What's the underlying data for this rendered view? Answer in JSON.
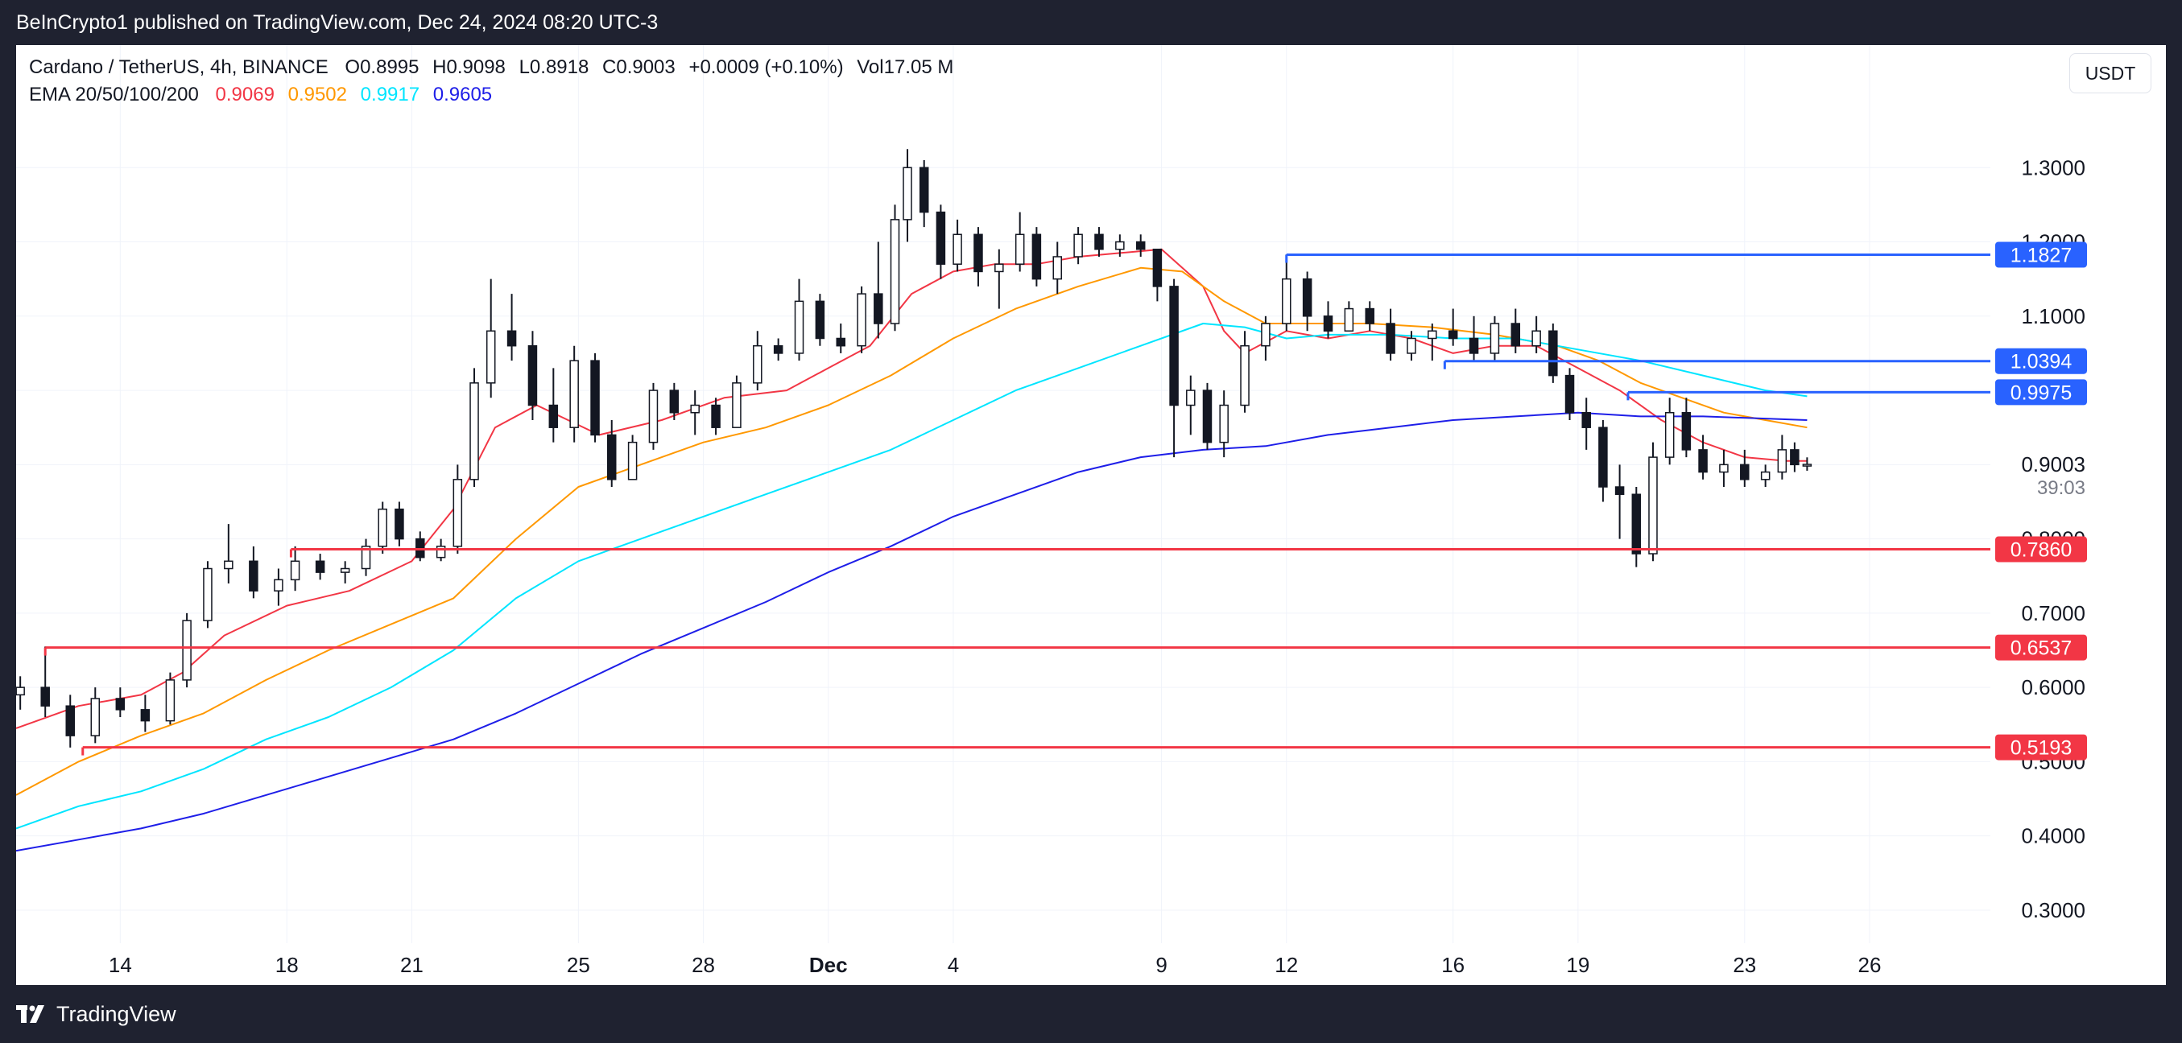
{
  "header": {
    "published": "BeInCrypto1 published on TradingView.com, Dec 24, 2024 08:20 UTC-3"
  },
  "legend": {
    "symbol": "Cardano / TetherUS, 4h, BINANCE",
    "open": "O0.8995",
    "high": "H0.9098",
    "low": "L0.8918",
    "close": "C0.9003",
    "change": "+0.0009 (+0.10%)",
    "volume": "Vol17.05 M",
    "ema_label": "EMA 20/50/100/200",
    "ema_values": [
      {
        "value": "0.9069",
        "color": "#f23645"
      },
      {
        "value": "0.9502",
        "color": "#ff9800"
      },
      {
        "value": "0.9917",
        "color": "#00e5ff"
      },
      {
        "value": "0.9605",
        "color": "#1e1ee8"
      }
    ]
  },
  "currency_button": "USDT",
  "footer": {
    "brand": "TradingView"
  },
  "chart_data": {
    "type": "candlestick",
    "title": "Cardano / TetherUS, 4h, BINANCE",
    "y_ticks": [
      "0.3000",
      "0.4000",
      "0.5000",
      "0.6000",
      "0.7000",
      "0.8000",
      "0.9000",
      "1.0000",
      "1.1000",
      "1.2000",
      "1.3000"
    ],
    "ylim": [
      0.262,
      1.4
    ],
    "x_ticks": [
      "14",
      "18",
      "21",
      "25",
      "28",
      "Dec",
      "4",
      "9",
      "12",
      "16",
      "19",
      "23",
      "26"
    ],
    "x_tick_days": [
      14,
      18,
      21,
      25,
      28,
      31,
      34,
      39,
      42,
      46,
      49,
      53,
      56
    ],
    "x_range_days": [
      11.5,
      58.9
    ],
    "day_labels": "day index counted from Nov 1 (Dec 1 = 31)",
    "last_price": "0.9003",
    "countdown": "39:03",
    "price_levels": [
      {
        "label": "1.1827",
        "value": 1.1827,
        "color": "#2962ff",
        "start_day": 42
      },
      {
        "label": "1.0394",
        "value": 1.0394,
        "color": "#2962ff",
        "start_day": 45.8
      },
      {
        "label": "0.9975",
        "value": 0.9975,
        "color": "#2962ff",
        "start_day": 50.2
      },
      {
        "label": "0.7860",
        "value": 0.786,
        "color": "#f23645",
        "start_day": 18.1
      },
      {
        "label": "0.6537",
        "value": 0.6537,
        "color": "#f23645",
        "start_day": 12.2
      },
      {
        "label": "0.5193",
        "value": 0.5193,
        "color": "#f23645",
        "start_day": 13.1
      }
    ],
    "ema_series": [
      {
        "period": 20,
        "color": "#f23645",
        "days": [
          11.5,
          13,
          14.5,
          15.5,
          16.5,
          18,
          19.5,
          21,
          22,
          23,
          24,
          25.5,
          27,
          28.5,
          30,
          31,
          32,
          33,
          34,
          35,
          36,
          37,
          38,
          39,
          40,
          40.5,
          41,
          42,
          43,
          44,
          45,
          46,
          47,
          48,
          49,
          50,
          51,
          52,
          53,
          54,
          54.5
        ],
        "values": [
          0.545,
          0.575,
          0.59,
          0.62,
          0.67,
          0.71,
          0.73,
          0.77,
          0.84,
          0.95,
          0.98,
          0.94,
          0.96,
          0.99,
          1.0,
          1.03,
          1.06,
          1.13,
          1.16,
          1.17,
          1.17,
          1.18,
          1.185,
          1.19,
          1.14,
          1.08,
          1.05,
          1.08,
          1.07,
          1.08,
          1.07,
          1.05,
          1.06,
          1.06,
          1.03,
          1.0,
          0.96,
          0.93,
          0.91,
          0.905,
          0.905
        ]
      },
      {
        "period": 50,
        "color": "#ff9800",
        "days": [
          11.5,
          13,
          14.5,
          16,
          17.5,
          19,
          20.5,
          22,
          23.5,
          25,
          26.5,
          28,
          29.5,
          31,
          32.5,
          34,
          35.5,
          37,
          38.5,
          39.5,
          40.5,
          41.5,
          42.5,
          44,
          45.5,
          47,
          48.5,
          49.5,
          50.5,
          51.5,
          52.5,
          53.5,
          54.5
        ],
        "values": [
          0.455,
          0.5,
          0.535,
          0.565,
          0.61,
          0.65,
          0.685,
          0.72,
          0.8,
          0.87,
          0.9,
          0.93,
          0.95,
          0.98,
          1.02,
          1.07,
          1.11,
          1.14,
          1.165,
          1.16,
          1.12,
          1.09,
          1.09,
          1.09,
          1.085,
          1.075,
          1.06,
          1.04,
          1.01,
          0.99,
          0.97,
          0.96,
          0.95
        ]
      },
      {
        "period": 100,
        "color": "#00e5ff",
        "days": [
          11.5,
          13,
          14.5,
          16,
          17.5,
          19,
          20.5,
          22,
          23.5,
          25,
          26.5,
          28,
          29.5,
          31,
          32.5,
          34,
          35.5,
          37,
          38.5,
          40,
          41,
          42,
          43,
          44.5,
          46,
          47.5,
          49,
          50.5,
          52,
          53.5,
          54.5
        ],
        "values": [
          0.41,
          0.44,
          0.46,
          0.49,
          0.53,
          0.56,
          0.6,
          0.65,
          0.72,
          0.77,
          0.8,
          0.83,
          0.86,
          0.89,
          0.92,
          0.96,
          1.0,
          1.03,
          1.06,
          1.09,
          1.085,
          1.07,
          1.075,
          1.075,
          1.07,
          1.07,
          1.055,
          1.04,
          1.02,
          1.0,
          0.992
        ]
      },
      {
        "period": 200,
        "color": "#1e1ee8",
        "days": [
          11.5,
          13,
          14.5,
          16,
          17.5,
          19,
          20.5,
          22,
          23.5,
          25,
          26.5,
          28,
          29.5,
          31,
          32.5,
          34,
          35.5,
          37,
          38.5,
          40,
          41.5,
          43,
          44.5,
          46,
          47.5,
          49,
          50.5,
          52,
          53.5,
          54.5
        ],
        "values": [
          0.38,
          0.395,
          0.41,
          0.43,
          0.455,
          0.48,
          0.505,
          0.53,
          0.565,
          0.605,
          0.645,
          0.68,
          0.715,
          0.755,
          0.79,
          0.83,
          0.86,
          0.89,
          0.91,
          0.92,
          0.925,
          0.94,
          0.95,
          0.96,
          0.965,
          0.97,
          0.965,
          0.965,
          0.962,
          0.96
        ]
      }
    ],
    "candles": [
      {
        "d": 11.6,
        "o": 0.59,
        "h": 0.615,
        "l": 0.57,
        "c": 0.6
      },
      {
        "d": 12.2,
        "o": 0.6,
        "h": 0.655,
        "l": 0.56,
        "c": 0.575
      },
      {
        "d": 12.8,
        "o": 0.575,
        "h": 0.59,
        "l": 0.519,
        "c": 0.535
      },
      {
        "d": 13.4,
        "o": 0.535,
        "h": 0.6,
        "l": 0.525,
        "c": 0.585
      },
      {
        "d": 14.0,
        "o": 0.585,
        "h": 0.6,
        "l": 0.56,
        "c": 0.57
      },
      {
        "d": 14.6,
        "o": 0.57,
        "h": 0.59,
        "l": 0.54,
        "c": 0.555
      },
      {
        "d": 15.2,
        "o": 0.555,
        "h": 0.62,
        "l": 0.55,
        "c": 0.61
      },
      {
        "d": 15.6,
        "o": 0.61,
        "h": 0.7,
        "l": 0.6,
        "c": 0.69
      },
      {
        "d": 16.1,
        "o": 0.69,
        "h": 0.77,
        "l": 0.68,
        "c": 0.76
      },
      {
        "d": 16.6,
        "o": 0.76,
        "h": 0.82,
        "l": 0.74,
        "c": 0.77
      },
      {
        "d": 17.2,
        "o": 0.77,
        "h": 0.79,
        "l": 0.72,
        "c": 0.73
      },
      {
        "d": 17.8,
        "o": 0.73,
        "h": 0.76,
        "l": 0.71,
        "c": 0.745
      },
      {
        "d": 18.2,
        "o": 0.745,
        "h": 0.79,
        "l": 0.73,
        "c": 0.77
      },
      {
        "d": 18.8,
        "o": 0.77,
        "h": 0.78,
        "l": 0.745,
        "c": 0.755
      },
      {
        "d": 19.4,
        "o": 0.755,
        "h": 0.77,
        "l": 0.74,
        "c": 0.76
      },
      {
        "d": 19.9,
        "o": 0.76,
        "h": 0.8,
        "l": 0.75,
        "c": 0.79
      },
      {
        "d": 20.3,
        "o": 0.79,
        "h": 0.85,
        "l": 0.78,
        "c": 0.84
      },
      {
        "d": 20.7,
        "o": 0.84,
        "h": 0.85,
        "l": 0.79,
        "c": 0.8
      },
      {
        "d": 21.2,
        "o": 0.8,
        "h": 0.81,
        "l": 0.77,
        "c": 0.775
      },
      {
        "d": 21.7,
        "o": 0.775,
        "h": 0.8,
        "l": 0.77,
        "c": 0.79
      },
      {
        "d": 22.1,
        "o": 0.79,
        "h": 0.9,
        "l": 0.78,
        "c": 0.88
      },
      {
        "d": 22.5,
        "o": 0.88,
        "h": 1.03,
        "l": 0.87,
        "c": 1.01
      },
      {
        "d": 22.9,
        "o": 1.01,
        "h": 1.15,
        "l": 0.99,
        "c": 1.08
      },
      {
        "d": 23.4,
        "o": 1.08,
        "h": 1.13,
        "l": 1.04,
        "c": 1.06
      },
      {
        "d": 23.9,
        "o": 1.06,
        "h": 1.08,
        "l": 0.96,
        "c": 0.98
      },
      {
        "d": 24.4,
        "o": 0.98,
        "h": 1.03,
        "l": 0.93,
        "c": 0.95
      },
      {
        "d": 24.9,
        "o": 0.95,
        "h": 1.06,
        "l": 0.93,
        "c": 1.04
      },
      {
        "d": 25.4,
        "o": 1.04,
        "h": 1.05,
        "l": 0.93,
        "c": 0.94
      },
      {
        "d": 25.8,
        "o": 0.94,
        "h": 0.96,
        "l": 0.87,
        "c": 0.88
      },
      {
        "d": 26.3,
        "o": 0.88,
        "h": 0.94,
        "l": 0.88,
        "c": 0.93
      },
      {
        "d": 26.8,
        "o": 0.93,
        "h": 1.01,
        "l": 0.92,
        "c": 1.0
      },
      {
        "d": 27.3,
        "o": 1.0,
        "h": 1.01,
        "l": 0.96,
        "c": 0.97
      },
      {
        "d": 27.8,
        "o": 0.97,
        "h": 1.0,
        "l": 0.94,
        "c": 0.98
      },
      {
        "d": 28.3,
        "o": 0.98,
        "h": 0.99,
        "l": 0.94,
        "c": 0.95
      },
      {
        "d": 28.8,
        "o": 0.95,
        "h": 1.02,
        "l": 0.95,
        "c": 1.01
      },
      {
        "d": 29.3,
        "o": 1.01,
        "h": 1.08,
        "l": 1.0,
        "c": 1.06
      },
      {
        "d": 29.8,
        "o": 1.06,
        "h": 1.07,
        "l": 1.04,
        "c": 1.05
      },
      {
        "d": 30.3,
        "o": 1.05,
        "h": 1.15,
        "l": 1.04,
        "c": 1.12
      },
      {
        "d": 30.8,
        "o": 1.12,
        "h": 1.13,
        "l": 1.06,
        "c": 1.07
      },
      {
        "d": 31.3,
        "o": 1.07,
        "h": 1.09,
        "l": 1.05,
        "c": 1.06
      },
      {
        "d": 31.8,
        "o": 1.06,
        "h": 1.14,
        "l": 1.05,
        "c": 1.13
      },
      {
        "d": 32.2,
        "o": 1.13,
        "h": 1.2,
        "l": 1.07,
        "c": 1.09
      },
      {
        "d": 32.6,
        "o": 1.09,
        "h": 1.25,
        "l": 1.08,
        "c": 1.23
      },
      {
        "d": 32.9,
        "o": 1.23,
        "h": 1.325,
        "l": 1.2,
        "c": 1.3
      },
      {
        "d": 33.3,
        "o": 1.3,
        "h": 1.31,
        "l": 1.22,
        "c": 1.24
      },
      {
        "d": 33.7,
        "o": 1.24,
        "h": 1.25,
        "l": 1.15,
        "c": 1.17
      },
      {
        "d": 34.1,
        "o": 1.17,
        "h": 1.23,
        "l": 1.16,
        "c": 1.21
      },
      {
        "d": 34.6,
        "o": 1.21,
        "h": 1.22,
        "l": 1.14,
        "c": 1.16
      },
      {
        "d": 35.1,
        "o": 1.16,
        "h": 1.19,
        "l": 1.11,
        "c": 1.17
      },
      {
        "d": 35.6,
        "o": 1.17,
        "h": 1.24,
        "l": 1.16,
        "c": 1.21
      },
      {
        "d": 36.0,
        "o": 1.21,
        "h": 1.22,
        "l": 1.14,
        "c": 1.15
      },
      {
        "d": 36.5,
        "o": 1.15,
        "h": 1.2,
        "l": 1.13,
        "c": 1.18
      },
      {
        "d": 37.0,
        "o": 1.18,
        "h": 1.22,
        "l": 1.17,
        "c": 1.21
      },
      {
        "d": 37.5,
        "o": 1.21,
        "h": 1.22,
        "l": 1.18,
        "c": 1.19
      },
      {
        "d": 38.0,
        "o": 1.19,
        "h": 1.21,
        "l": 1.18,
        "c": 1.2
      },
      {
        "d": 38.5,
        "o": 1.2,
        "h": 1.21,
        "l": 1.18,
        "c": 1.19
      },
      {
        "d": 38.9,
        "o": 1.19,
        "h": 1.19,
        "l": 1.12,
        "c": 1.14
      },
      {
        "d": 39.3,
        "o": 1.14,
        "h": 1.15,
        "l": 0.91,
        "c": 0.98
      },
      {
        "d": 39.7,
        "o": 0.98,
        "h": 1.02,
        "l": 0.94,
        "c": 1.0
      },
      {
        "d": 40.1,
        "o": 1.0,
        "h": 1.01,
        "l": 0.92,
        "c": 0.93
      },
      {
        "d": 40.5,
        "o": 0.93,
        "h": 1.0,
        "l": 0.91,
        "c": 0.98
      },
      {
        "d": 41.0,
        "o": 0.98,
        "h": 1.08,
        "l": 0.97,
        "c": 1.06
      },
      {
        "d": 41.5,
        "o": 1.06,
        "h": 1.1,
        "l": 1.04,
        "c": 1.09
      },
      {
        "d": 42.0,
        "o": 1.09,
        "h": 1.183,
        "l": 1.08,
        "c": 1.15
      },
      {
        "d": 42.5,
        "o": 1.15,
        "h": 1.16,
        "l": 1.08,
        "c": 1.1
      },
      {
        "d": 43.0,
        "o": 1.1,
        "h": 1.12,
        "l": 1.07,
        "c": 1.08
      },
      {
        "d": 43.5,
        "o": 1.08,
        "h": 1.12,
        "l": 1.08,
        "c": 1.11
      },
      {
        "d": 44.0,
        "o": 1.11,
        "h": 1.12,
        "l": 1.08,
        "c": 1.09
      },
      {
        "d": 44.5,
        "o": 1.09,
        "h": 1.11,
        "l": 1.04,
        "c": 1.05
      },
      {
        "d": 45.0,
        "o": 1.05,
        "h": 1.08,
        "l": 1.04,
        "c": 1.07
      },
      {
        "d": 45.5,
        "o": 1.07,
        "h": 1.09,
        "l": 1.04,
        "c": 1.08
      },
      {
        "d": 46.0,
        "o": 1.08,
        "h": 1.11,
        "l": 1.06,
        "c": 1.07
      },
      {
        "d": 46.5,
        "o": 1.07,
        "h": 1.1,
        "l": 1.04,
        "c": 1.05
      },
      {
        "d": 47.0,
        "o": 1.05,
        "h": 1.1,
        "l": 1.04,
        "c": 1.09
      },
      {
        "d": 47.5,
        "o": 1.09,
        "h": 1.11,
        "l": 1.05,
        "c": 1.06
      },
      {
        "d": 48.0,
        "o": 1.06,
        "h": 1.1,
        "l": 1.05,
        "c": 1.08
      },
      {
        "d": 48.4,
        "o": 1.08,
        "h": 1.09,
        "l": 1.01,
        "c": 1.02
      },
      {
        "d": 48.8,
        "o": 1.02,
        "h": 1.03,
        "l": 0.96,
        "c": 0.97
      },
      {
        "d": 49.2,
        "o": 0.97,
        "h": 0.99,
        "l": 0.92,
        "c": 0.95
      },
      {
        "d": 49.6,
        "o": 0.95,
        "h": 0.96,
        "l": 0.85,
        "c": 0.87
      },
      {
        "d": 50.0,
        "o": 0.87,
        "h": 0.9,
        "l": 0.8,
        "c": 0.86
      },
      {
        "d": 50.4,
        "o": 0.86,
        "h": 0.87,
        "l": 0.762,
        "c": 0.78
      },
      {
        "d": 50.8,
        "o": 0.78,
        "h": 0.93,
        "l": 0.77,
        "c": 0.91
      },
      {
        "d": 51.2,
        "o": 0.91,
        "h": 0.99,
        "l": 0.9,
        "c": 0.97
      },
      {
        "d": 51.6,
        "o": 0.97,
        "h": 0.99,
        "l": 0.91,
        "c": 0.92
      },
      {
        "d": 52.0,
        "o": 0.92,
        "h": 0.94,
        "l": 0.88,
        "c": 0.89
      },
      {
        "d": 52.5,
        "o": 0.89,
        "h": 0.92,
        "l": 0.87,
        "c": 0.9
      },
      {
        "d": 53.0,
        "o": 0.9,
        "h": 0.92,
        "l": 0.87,
        "c": 0.88
      },
      {
        "d": 53.5,
        "o": 0.88,
        "h": 0.9,
        "l": 0.87,
        "c": 0.89
      },
      {
        "d": 53.9,
        "o": 0.89,
        "h": 0.94,
        "l": 0.88,
        "c": 0.92
      },
      {
        "d": 54.2,
        "o": 0.92,
        "h": 0.93,
        "l": 0.89,
        "c": 0.9
      },
      {
        "d": 54.5,
        "o": 0.8995,
        "h": 0.9098,
        "l": 0.8918,
        "c": 0.9003
      }
    ]
  }
}
